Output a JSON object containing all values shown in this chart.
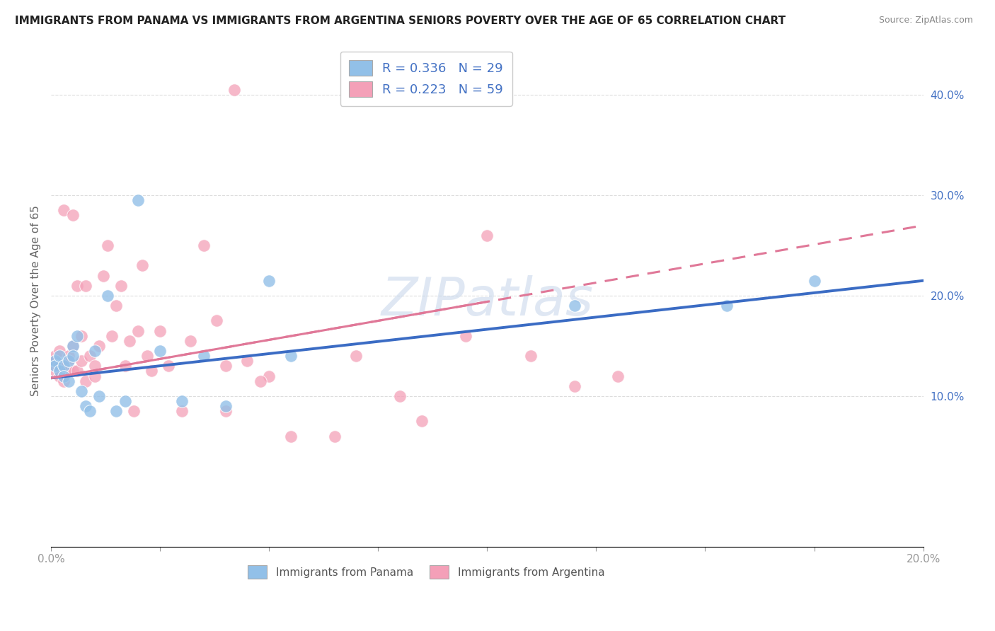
{
  "title": "IMMIGRANTS FROM PANAMA VS IMMIGRANTS FROM ARGENTINA SENIORS POVERTY OVER THE AGE OF 65 CORRELATION CHART",
  "source": "Source: ZipAtlas.com",
  "ylabel": "Seniors Poverty Over the Age of 65",
  "xlim": [
    0.0,
    0.2
  ],
  "ylim": [
    -0.05,
    0.44
  ],
  "label_panama": "Immigrants from Panama",
  "label_argentina": "Immigrants from Argentina",
  "color_panama": "#92C0E8",
  "color_argentina": "#F4A0B8",
  "color_blue_text": "#4472C4",
  "watermark": "ZIPatlas",
  "panama_x": [
    0.001,
    0.001,
    0.002,
    0.002,
    0.003,
    0.003,
    0.004,
    0.004,
    0.005,
    0.005,
    0.006,
    0.007,
    0.008,
    0.009,
    0.01,
    0.011,
    0.013,
    0.015,
    0.017,
    0.02,
    0.025,
    0.03,
    0.035,
    0.04,
    0.05,
    0.055,
    0.12,
    0.155,
    0.175
  ],
  "panama_y": [
    0.135,
    0.13,
    0.14,
    0.125,
    0.13,
    0.12,
    0.135,
    0.115,
    0.15,
    0.14,
    0.16,
    0.105,
    0.09,
    0.085,
    0.145,
    0.1,
    0.2,
    0.085,
    0.095,
    0.295,
    0.145,
    0.095,
    0.14,
    0.09,
    0.215,
    0.14,
    0.19,
    0.19,
    0.215
  ],
  "argentina_x": [
    0.001,
    0.001,
    0.001,
    0.002,
    0.002,
    0.002,
    0.003,
    0.003,
    0.003,
    0.004,
    0.004,
    0.004,
    0.005,
    0.005,
    0.005,
    0.006,
    0.006,
    0.007,
    0.007,
    0.008,
    0.008,
    0.009,
    0.01,
    0.01,
    0.011,
    0.012,
    0.013,
    0.014,
    0.015,
    0.016,
    0.017,
    0.018,
    0.019,
    0.02,
    0.021,
    0.022,
    0.023,
    0.025,
    0.027,
    0.03,
    0.032,
    0.035,
    0.038,
    0.04,
    0.042,
    0.05,
    0.055,
    0.065,
    0.07,
    0.08,
    0.085,
    0.095,
    0.1,
    0.11,
    0.12,
    0.13,
    0.04,
    0.045,
    0.048
  ],
  "argentina_y": [
    0.135,
    0.125,
    0.14,
    0.13,
    0.12,
    0.145,
    0.115,
    0.13,
    0.285,
    0.135,
    0.14,
    0.125,
    0.15,
    0.125,
    0.28,
    0.125,
    0.21,
    0.135,
    0.16,
    0.115,
    0.21,
    0.14,
    0.12,
    0.13,
    0.15,
    0.22,
    0.25,
    0.16,
    0.19,
    0.21,
    0.13,
    0.155,
    0.085,
    0.165,
    0.23,
    0.14,
    0.125,
    0.165,
    0.13,
    0.085,
    0.155,
    0.25,
    0.175,
    0.085,
    0.405,
    0.12,
    0.06,
    0.06,
    0.14,
    0.1,
    0.075,
    0.16,
    0.26,
    0.14,
    0.11,
    0.12,
    0.13,
    0.135,
    0.115
  ],
  "panama_trendline": [
    0.0,
    0.2,
    0.118,
    0.215
  ],
  "argentina_trendline": [
    0.0,
    0.2,
    0.118,
    0.27
  ]
}
